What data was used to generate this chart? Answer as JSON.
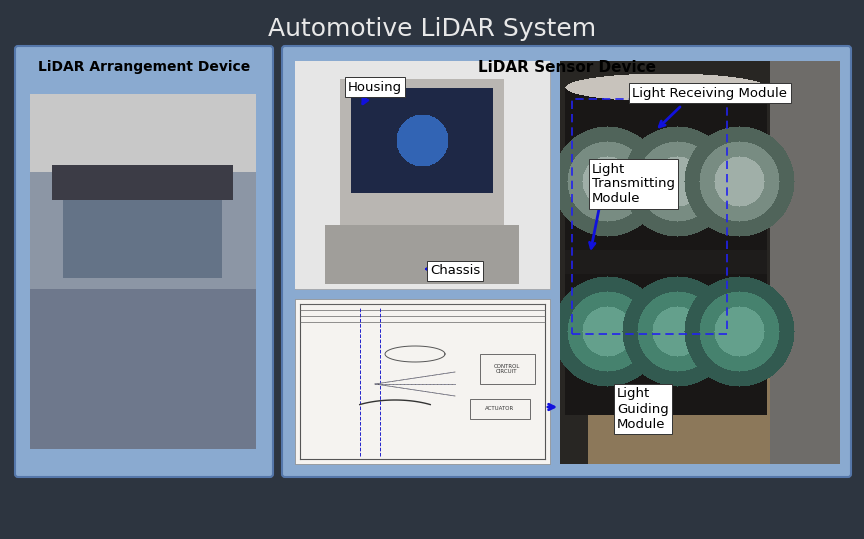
{
  "title": "Automotive LiDAR System",
  "title_fontsize": 18,
  "title_color": "#e8e8e8",
  "bg_color": "#2d3540",
  "left_panel_color": "#8aaad0",
  "left_panel_border": "#5577aa",
  "right_panel_color": "#8aaad0",
  "right_panel_border": "#5577aa",
  "left_label": "LiDAR Arrangement Device",
  "right_label": "LiDAR Sensor Device",
  "label_fontsize": 10,
  "annotation_fontsize": 9.5
}
